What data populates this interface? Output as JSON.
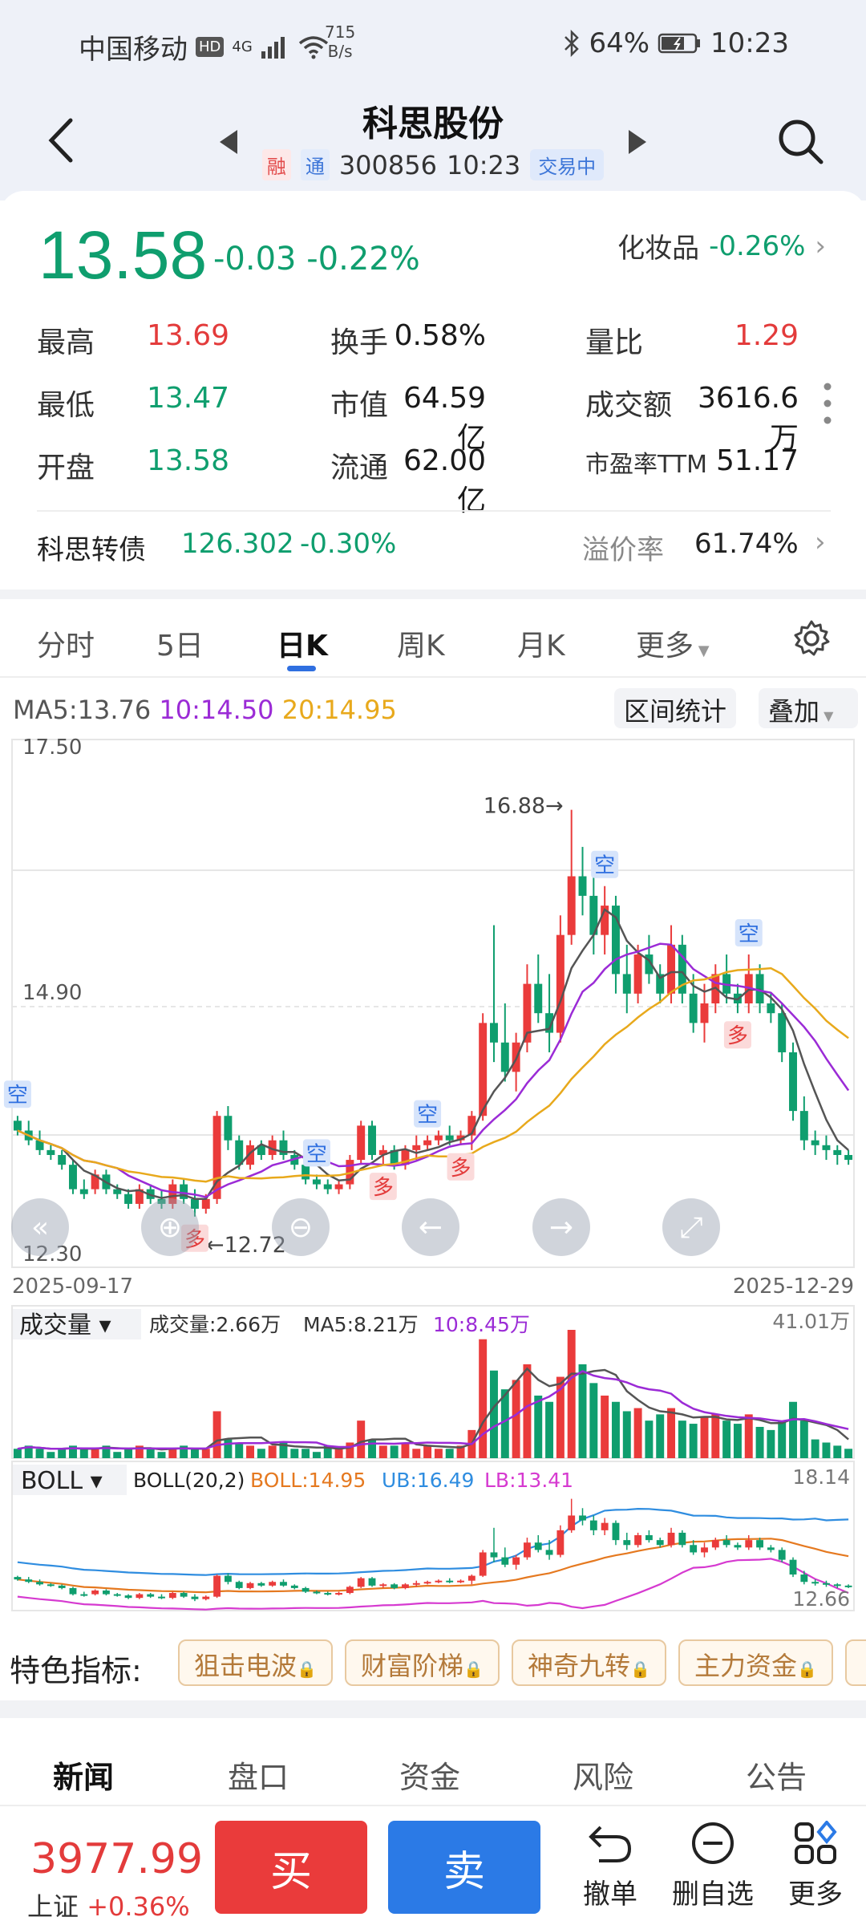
{
  "status_bar": {
    "carrier": "中国移动",
    "hd": "HD",
    "network": "4G",
    "speed_value": "715",
    "speed_unit": "B/s",
    "bluetooth": "bluetooth-icon",
    "battery": "64%",
    "time": "10:23"
  },
  "nav": {
    "title": "科思股份",
    "tag_margin": "融",
    "tag_connect": "通",
    "code": "300856",
    "time": "10:23",
    "trade_status": "交易中"
  },
  "quote": {
    "price": "13.58",
    "change": "-0.03",
    "change_pct": "-0.22%",
    "sector_name": "化妆品",
    "sector_pct": "-0.26%",
    "rows": [
      [
        {
          "label": "最高",
          "value": "13.69",
          "color": "red"
        },
        {
          "label": "换手",
          "value": "0.58%",
          "color": "black"
        },
        {
          "label": "量比",
          "value": "1.29",
          "color": "red"
        }
      ],
      [
        {
          "label": "最低",
          "value": "13.47",
          "color": "green"
        },
        {
          "label": "市值",
          "value": "64.59亿",
          "color": "black"
        },
        {
          "label": "成交额",
          "value": "3616.6万",
          "color": "black"
        }
      ],
      [
        {
          "label": "开盘",
          "value": "13.58",
          "color": "green"
        },
        {
          "label": "流通",
          "value": "62.00亿",
          "color": "black"
        },
        {
          "label": "市盈率TTM",
          "value": "51.17",
          "color": "black"
        }
      ]
    ],
    "bond_name": "科思转债",
    "bond_price": "126.302",
    "bond_pct": "-0.30%",
    "premium_label": "溢价率",
    "premium_value": "61.74%"
  },
  "chart_tabs": [
    "分时",
    "5日",
    "日K",
    "周K",
    "月K",
    "更多"
  ],
  "active_chart_tab": "日K",
  "ma_legend": {
    "ma5": "MA5:13.76",
    "ma10": "10:14.50",
    "ma20": "20:14.95"
  },
  "buttons": {
    "interval_stats": "区间统计",
    "overlay": "叠加"
  },
  "colors": {
    "up": "#ea3b3b",
    "down": "#0f9e6e",
    "ma5": "#555555",
    "ma10": "#9b2bd6",
    "ma20": "#e8a91c",
    "accent": "#2f6fe0"
  },
  "chart_data": {
    "type": "candlestick",
    "y_axis_labels": [
      "17.50",
      "14.90",
      "12.30"
    ],
    "x_axis_labels": [
      "2025-09-17",
      "2025-12-29"
    ],
    "ylim": [
      12.3,
      17.5
    ],
    "max_label": "16.88",
    "min_label": "12.72",
    "ohlc": [
      [
        13.7,
        13.75,
        13.55,
        13.6
      ],
      [
        13.6,
        13.7,
        13.45,
        13.5
      ],
      [
        13.5,
        13.6,
        13.35,
        13.4
      ],
      [
        13.4,
        13.45,
        13.3,
        13.35
      ],
      [
        13.35,
        13.4,
        13.2,
        13.25
      ],
      [
        13.25,
        13.3,
        12.95,
        13.0
      ],
      [
        13.0,
        13.1,
        12.9,
        12.95
      ],
      [
        13.0,
        13.2,
        12.95,
        13.15
      ],
      [
        13.15,
        13.2,
        12.95,
        13.0
      ],
      [
        13.0,
        13.05,
        12.9,
        12.95
      ],
      [
        12.95,
        13.0,
        12.8,
        12.85
      ],
      [
        12.85,
        13.05,
        12.8,
        13.0
      ],
      [
        13.0,
        13.05,
        12.85,
        12.9
      ],
      [
        12.9,
        13.0,
        12.8,
        12.85
      ],
      [
        12.85,
        13.1,
        12.8,
        13.05
      ],
      [
        13.05,
        13.1,
        12.85,
        12.9
      ],
      [
        12.9,
        13.0,
        12.72,
        12.8
      ],
      [
        12.8,
        12.95,
        12.75,
        12.9
      ],
      [
        12.9,
        13.8,
        12.85,
        13.75
      ],
      [
        13.75,
        13.85,
        13.4,
        13.5
      ],
      [
        13.5,
        13.55,
        13.2,
        13.25
      ],
      [
        13.25,
        13.5,
        13.2,
        13.45
      ],
      [
        13.45,
        13.5,
        13.3,
        13.35
      ],
      [
        13.35,
        13.55,
        13.3,
        13.5
      ],
      [
        13.5,
        13.6,
        13.3,
        13.35
      ],
      [
        13.35,
        13.4,
        13.2,
        13.25
      ],
      [
        13.25,
        13.3,
        13.05,
        13.1
      ],
      [
        13.1,
        13.15,
        13.0,
        13.05
      ],
      [
        13.05,
        13.1,
        12.95,
        13.0
      ],
      [
        13.0,
        13.1,
        12.95,
        13.05
      ],
      [
        13.05,
        13.35,
        13.0,
        13.3
      ],
      [
        13.3,
        13.7,
        13.25,
        13.65
      ],
      [
        13.65,
        13.7,
        13.3,
        13.35
      ],
      [
        13.35,
        13.45,
        13.25,
        13.4
      ],
      [
        13.4,
        13.45,
        13.2,
        13.25
      ],
      [
        13.25,
        13.45,
        13.2,
        13.4
      ],
      [
        13.4,
        13.55,
        13.3,
        13.45
      ],
      [
        13.45,
        13.55,
        13.4,
        13.5
      ],
      [
        13.5,
        13.6,
        13.45,
        13.55
      ],
      [
        13.55,
        13.65,
        13.45,
        13.5
      ],
      [
        13.5,
        13.6,
        13.45,
        13.55
      ],
      [
        13.55,
        13.8,
        13.4,
        13.75
      ],
      [
        13.75,
        14.8,
        13.7,
        14.7
      ],
      [
        14.7,
        15.7,
        14.3,
        14.5
      ],
      [
        14.5,
        14.9,
        14.1,
        14.2
      ],
      [
        14.2,
        14.6,
        14.0,
        14.5
      ],
      [
        14.5,
        15.3,
        14.4,
        15.1
      ],
      [
        15.1,
        15.4,
        14.7,
        14.8
      ],
      [
        14.8,
        15.2,
        14.4,
        14.6
      ],
      [
        14.6,
        15.8,
        14.5,
        15.6
      ],
      [
        15.6,
        16.88,
        15.5,
        16.2
      ],
      [
        16.2,
        16.5,
        15.8,
        16.0
      ],
      [
        16.0,
        16.2,
        15.4,
        15.6
      ],
      [
        15.6,
        16.1,
        15.4,
        15.9
      ],
      [
        15.9,
        16.0,
        15.0,
        15.2
      ],
      [
        15.2,
        15.5,
        14.8,
        15.0
      ],
      [
        15.0,
        15.5,
        14.9,
        15.4
      ],
      [
        15.4,
        15.6,
        15.1,
        15.2
      ],
      [
        15.2,
        15.3,
        14.9,
        15.0
      ],
      [
        15.0,
        15.7,
        14.9,
        15.5
      ],
      [
        15.5,
        15.6,
        14.9,
        15.0
      ],
      [
        15.0,
        15.2,
        14.6,
        14.7
      ],
      [
        14.7,
        15.1,
        14.5,
        14.9
      ],
      [
        14.9,
        15.3,
        14.8,
        15.2
      ],
      [
        15.2,
        15.4,
        14.9,
        15.0
      ],
      [
        15.0,
        15.1,
        14.8,
        14.9
      ],
      [
        14.9,
        15.4,
        14.8,
        15.2
      ],
      [
        15.2,
        15.3,
        14.8,
        14.9
      ],
      [
        14.9,
        15.0,
        14.7,
        14.8
      ],
      [
        14.8,
        14.9,
        14.3,
        14.4
      ],
      [
        14.4,
        14.5,
        13.7,
        13.8
      ],
      [
        13.8,
        13.95,
        13.4,
        13.5
      ],
      [
        13.5,
        13.6,
        13.35,
        13.45
      ],
      [
        13.45,
        13.55,
        13.3,
        13.4
      ],
      [
        13.4,
        13.45,
        13.25,
        13.35
      ],
      [
        13.35,
        13.4,
        13.25,
        13.3
      ]
    ],
    "signals": [
      {
        "label": "空",
        "index": 0,
        "kind": "sell"
      },
      {
        "label": "多",
        "index": 16,
        "kind": "buy"
      },
      {
        "label": "空",
        "index": 27,
        "kind": "sell"
      },
      {
        "label": "多",
        "index": 33,
        "kind": "buy"
      },
      {
        "label": "空",
        "index": 37,
        "kind": "sell"
      },
      {
        "label": "多",
        "index": 40,
        "kind": "buy"
      },
      {
        "label": "空",
        "index": 53,
        "kind": "sell"
      },
      {
        "label": "多",
        "index": 65,
        "kind": "buy"
      },
      {
        "label": "空",
        "index": 66,
        "kind": "sell"
      }
    ]
  },
  "volume": {
    "title": "成交量",
    "today": "成交量:2.66万",
    "ma5": "MA5:8.21万",
    "ma10": "10:8.45万",
    "max_label": "41.01万",
    "values": [
      3,
      4,
      3,
      2,
      3,
      4,
      3,
      3,
      4,
      2,
      3,
      4,
      3,
      2,
      3,
      4,
      3,
      3,
      15,
      6,
      5,
      4,
      3,
      4,
      5,
      3,
      3,
      2,
      4,
      3,
      5,
      12,
      6,
      4,
      4,
      5,
      3,
      4,
      3,
      3,
      4,
      9,
      38,
      28,
      22,
      25,
      30,
      20,
      18,
      26,
      41,
      30,
      24,
      20,
      18,
      15,
      16,
      12,
      14,
      16,
      12,
      11,
      13,
      14,
      12,
      11,
      14,
      10,
      9,
      12,
      18,
      12,
      6,
      5,
      4,
      3
    ]
  },
  "boll": {
    "title": "BOLL",
    "params": "BOLL(20,2)",
    "mid": "BOLL:14.95",
    "ub": "UB:16.49",
    "lb": "LB:13.41",
    "max_label": "18.14",
    "min_label": "12.66"
  },
  "chart_controls": [
    "rewind-icon",
    "zoom-in-icon",
    "zoom-out-icon",
    "pan-left-icon",
    "pan-right-icon",
    "fullscreen-icon"
  ],
  "features": {
    "label": "特色指标:",
    "items": [
      "狙击电波",
      "财富阶梯",
      "神奇九转",
      "主力资金"
    ]
  },
  "bottom_tabs": [
    "新闻",
    "盘口",
    "资金",
    "风险",
    "公告"
  ],
  "bottom_bar": {
    "index_value": "3977.99",
    "index_name": "上证",
    "index_pct": "+0.36%",
    "buy": "买",
    "sell": "卖",
    "cancel": "撤单",
    "remove": "删自选",
    "more": "更多"
  }
}
